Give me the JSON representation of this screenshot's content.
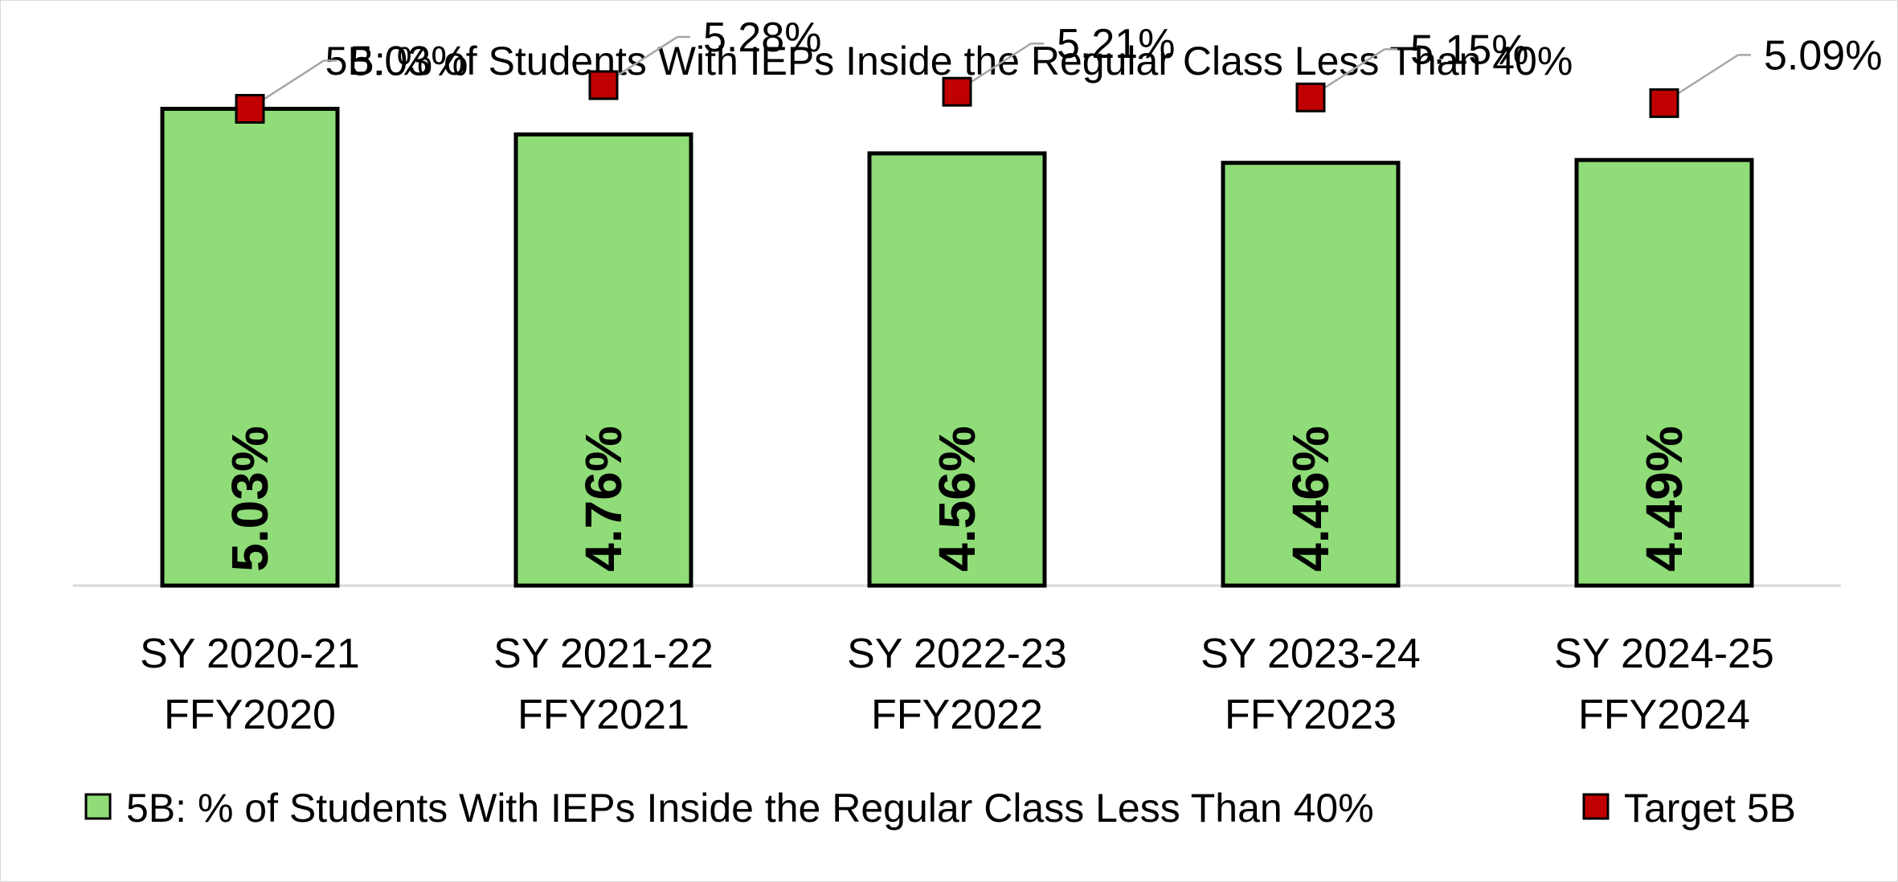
{
  "chart_data": {
    "type": "bar",
    "title": "5B: % of Students With IEPs Inside the Regular Class Less Than 40%",
    "categories": [
      [
        "SY 2020-21",
        "FFY2020"
      ],
      [
        "SY 2021-22",
        "FFY2021"
      ],
      [
        "SY 2022-23",
        "FFY2022"
      ],
      [
        "SY 2023-24",
        "FFY2023"
      ],
      [
        "SY 2024-25",
        "FFY2024"
      ]
    ],
    "series": [
      {
        "name": "5B: % of Students With IEPs Inside the Regular Class Less Than 40%",
        "type": "bar",
        "values": [
          5.03,
          4.76,
          4.56,
          4.46,
          4.49
        ],
        "labels": [
          "5.03%",
          "4.76%",
          "4.56%",
          "4.46%",
          "4.49%"
        ],
        "color": "#8fdc78"
      },
      {
        "name": "Target 5B",
        "type": "marker",
        "values": [
          5.03,
          5.28,
          5.21,
          5.15,
          5.09
        ],
        "labels": [
          "5.03%",
          "5.28%",
          "5.21%",
          "5.15%",
          "5.09%"
        ],
        "color": "#c00000"
      }
    ],
    "ylim": [
      0,
      6
    ],
    "grid": false,
    "legend": "bottom",
    "xlabel": "",
    "ylabel": ""
  }
}
